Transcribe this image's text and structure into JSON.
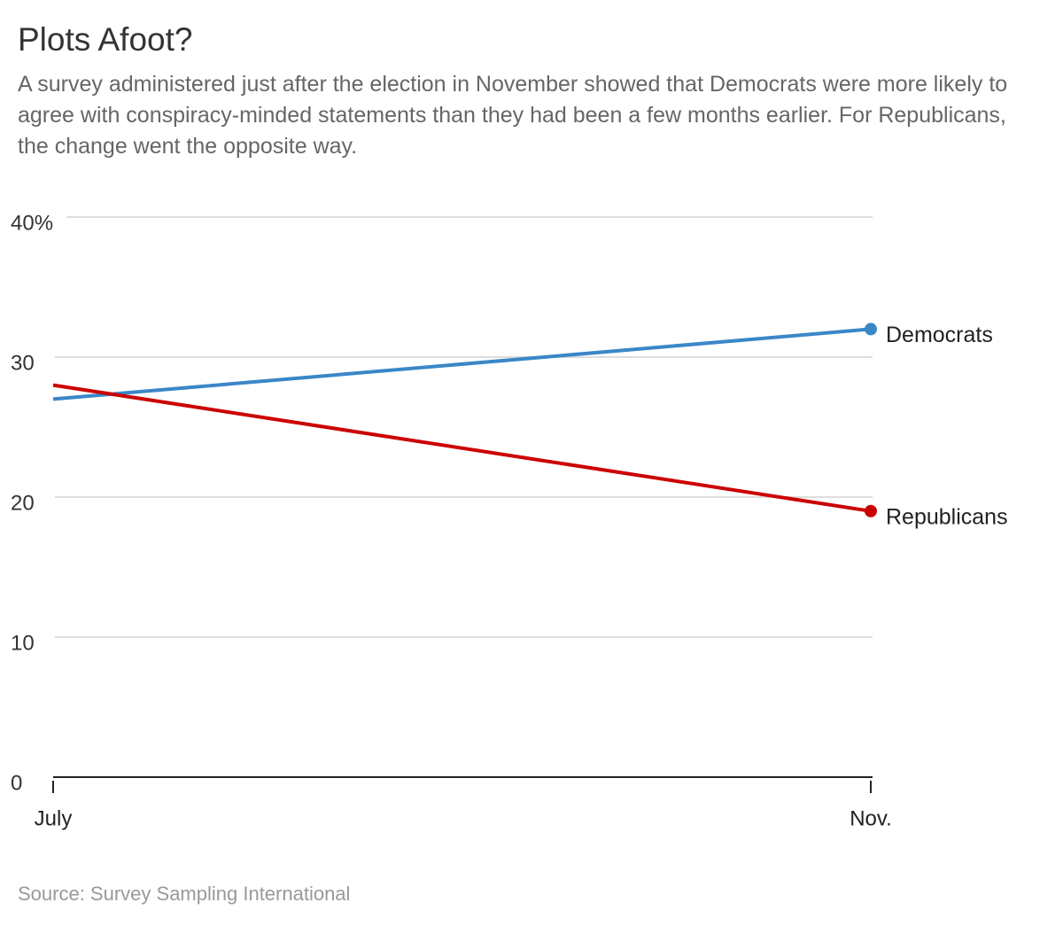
{
  "chart_data": {
    "type": "line",
    "title": "Plots Afoot?",
    "subtitle": "A survey administered just after the election in November showed that Democrats were more likely to agree with conspiracy-minded statements than they had been a few months earlier. For Republicans, the change went the opposite way.",
    "source": "Source: Survey Sampling International",
    "categories": [
      "July",
      "Nov."
    ],
    "series": [
      {
        "name": "Democrats",
        "color": "#3a87c8",
        "values": [
          27,
          32
        ]
      },
      {
        "name": "Republicans",
        "color": "#cc0000",
        "values": [
          28,
          19
        ]
      }
    ],
    "ylim": [
      0,
      40
    ],
    "yticks": [
      0,
      10,
      20,
      30,
      {
        "value": 40,
        "label": "40%"
      }
    ],
    "grid": true
  }
}
